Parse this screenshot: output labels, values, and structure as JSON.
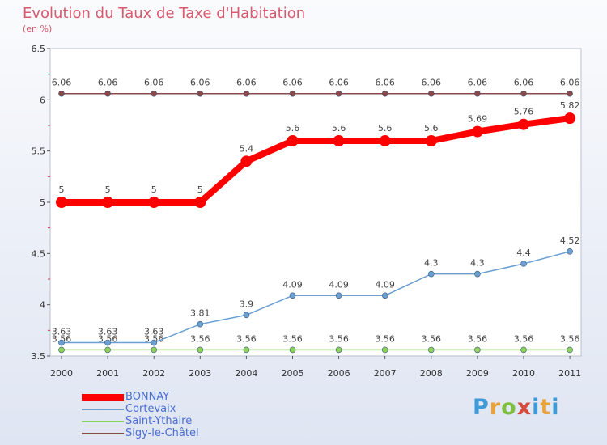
{
  "title": "Evolution du Taux de Taxe d'Habitation",
  "subtitle": "(en %)",
  "logo": "Proxiti",
  "chart_data": {
    "type": "line",
    "title": "Evolution du Taux de Taxe d'Habitation",
    "subtitle": "(en %)",
    "x": [
      "2000",
      "2001",
      "2002",
      "2003",
      "2004",
      "2005",
      "2006",
      "2007",
      "2008",
      "2009",
      "2010",
      "2011"
    ],
    "ylim": [
      3.5,
      6.5
    ],
    "yticks": [
      "3.5",
      "4",
      "4.5",
      "5",
      "5.5",
      "6",
      "6.5"
    ],
    "grid": false,
    "legend_position": "bottom-left",
    "series": [
      {
        "name": "BONNAY",
        "color": "#ff0000",
        "values": [
          5,
          5,
          5,
          5,
          5.4,
          5.6,
          5.6,
          5.6,
          5.6,
          5.69,
          5.76,
          5.82
        ],
        "labels": [
          "5",
          "5",
          "5",
          "5",
          "5.4",
          "5.6",
          "5.6",
          "5.6",
          "5.6",
          "5.69",
          "5.76",
          "5.82"
        ]
      },
      {
        "name": "Cortevaix",
        "color": "#6a9fd2",
        "values": [
          3.63,
          3.63,
          3.63,
          3.81,
          3.9,
          4.09,
          4.09,
          4.09,
          4.3,
          4.3,
          4.4,
          4.52
        ],
        "labels": [
          "3.63",
          "3.63",
          "3.63",
          "3.81",
          "3.9",
          "4.09",
          "4.09",
          "4.09",
          "4.3",
          "4.3",
          "4.4",
          "4.52"
        ]
      },
      {
        "name": "Saint-Ythaire",
        "color": "#8fd45a",
        "values": [
          3.56,
          3.56,
          3.56,
          3.56,
          3.56,
          3.56,
          3.56,
          3.56,
          3.56,
          3.56,
          3.56,
          3.56
        ],
        "labels": [
          "3.56",
          "3.56",
          "3.56",
          "3.56",
          "3.56",
          "3.56",
          "3.56",
          "3.56",
          "3.56",
          "3.56",
          "3.56",
          "3.56"
        ]
      },
      {
        "name": "Sigy-le-Châtel",
        "color": "#8a4a4a",
        "values": [
          6.06,
          6.06,
          6.06,
          6.06,
          6.06,
          6.06,
          6.06,
          6.06,
          6.06,
          6.06,
          6.06,
          6.06
        ],
        "labels": [
          "6.06",
          "6.06",
          "6.06",
          "6.06",
          "6.06",
          "6.06",
          "6.06",
          "6.06",
          "6.06",
          "6.06",
          "6.06",
          "6.06"
        ]
      }
    ]
  }
}
